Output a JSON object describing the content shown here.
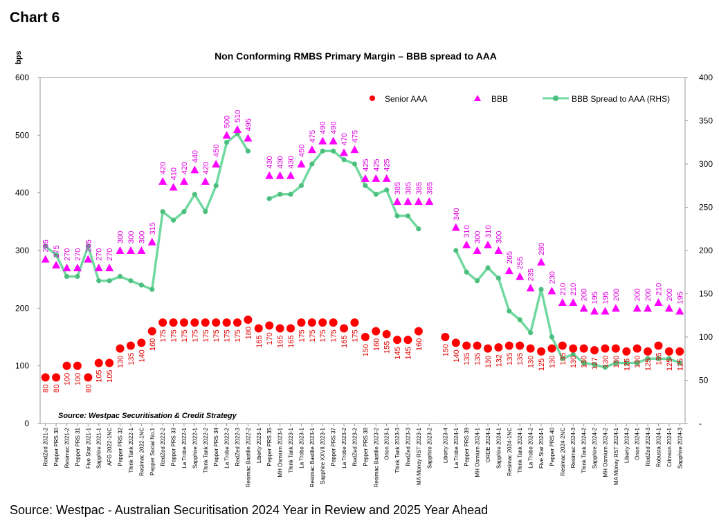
{
  "heading": "Chart 6",
  "footer": "Source: Westpac - Australian Securitisation 2024 Year in Review and 2025 Year Ahead",
  "colors": {
    "senior": "#ff0000",
    "bbb": "#ff00ff",
    "spread": "#70d9a0",
    "spread_marker": "#4cbf7e",
    "label_senior": "#e00000",
    "label_bbb": "#e000e0"
  },
  "chart_data": {
    "type": "line",
    "title": "Non Conforming RMBS Primary Margin – BBB spread to AAA",
    "ylabel": "bps",
    "ylim": [
      0,
      600
    ],
    "y_ticks": [
      "0",
      "100",
      "200",
      "300",
      "400",
      "500",
      "600"
    ],
    "y2lim": [
      0,
      400
    ],
    "y2_ticks": [
      "-",
      "50",
      "100",
      "150",
      "200",
      "250",
      "300",
      "350",
      "400"
    ],
    "grid": false,
    "legend_position": "top-right",
    "annotation": "Source: Westpac Securitisation & Credit Strategy",
    "categories": [
      "RedZed 2021-2",
      "Pepper PRS 30",
      "Resimac 2021-2",
      "Pepper PRS 31",
      "Five Star 2021-1",
      "Sapphire 2021-1",
      "AFG 2022-1NC",
      "Pepper PRS 32",
      "Think Tank 2022-1",
      "Resimac 2022-1NC",
      "Pepper Social No.1",
      "RedZed 2022-2",
      "Pepper PRS 33",
      "La Trobe 2022-1",
      "Sapphire 2022-1",
      "Think Tank 2022-2",
      "Pepper PRS 34",
      "La Trobe 2022-2",
      "RedZed 2022-3",
      "Resimac Bastille 2022-2",
      "Liberty 2023-1",
      "Pepper PRS 35",
      "MH Osmium 2023-1",
      "Think Tank 2023-1",
      "La Trobe 2023-1",
      "Resimac Bastille 2023-1",
      "Sapphire XXVII 2023-1",
      "Pepper PRS 37",
      "La Trobe 2023-2",
      "RedZed 2023-2",
      "Pepper PRS 38",
      "Resimac Bastille 2023-2",
      "Orion 2023-1",
      "Think Tank 2023-3",
      "RedZed 2023-3",
      "MA Money RST 2023-1",
      "Sapphire 2023-2",
      "Liberty 2023-4",
      "La Trobe 2024-1",
      "Pepper PRS 39",
      "MH Osmium 2024-1",
      "ORDE 2024-1",
      "Sapphire 2024-1",
      "Resimac 2024-1NC",
      "Think Tank 2024-1",
      "La Trobe 2024-2",
      "Five Star 2024-1",
      "Pepper PRS 40",
      "Resimac 2024-2NC",
      "Resimac 2024-3",
      "Think Tank 2024-2",
      "Sapphire 2024-2",
      "MH Osmium 2024-2",
      "MA Money RST 2024-1",
      "Liberty 2024-2",
      "Orion 2024-1",
      "RedZed 2024-3",
      "Robusta 2024-1",
      "Crimson 2024-1",
      "Sapphire 2024-3"
    ],
    "category_positions": [
      0,
      1,
      2,
      3,
      4,
      5,
      6,
      7,
      8,
      9,
      10,
      11,
      12,
      13,
      14,
      15,
      16,
      17,
      18,
      19,
      20,
      21,
      22,
      23,
      24,
      25,
      26,
      27,
      28,
      29,
      30,
      31,
      32,
      33,
      34,
      35,
      36,
      37.5,
      38.5,
      39.5,
      40.5,
      41.5,
      42.5,
      43.5,
      44.5,
      45.5,
      46.5,
      47.5,
      48.5,
      49.5,
      50.5,
      51.5,
      52.5,
      53.5,
      54.5,
      55.5,
      56.5,
      57.5,
      58.5,
      59.5
    ],
    "series": [
      {
        "name": "Senior AAA",
        "axis": "left",
        "marker": "circle",
        "values": [
          80,
          80,
          100,
          100,
          80,
          105,
          105,
          130,
          135,
          140,
          160,
          175,
          175,
          175,
          175,
          175,
          175,
          175,
          175,
          180,
          165,
          170,
          165,
          165,
          175,
          175,
          175,
          175,
          165,
          175,
          150,
          160,
          155,
          145,
          145,
          160,
          null,
          150,
          140,
          135,
          135,
          130,
          132,
          135,
          135,
          130,
          125,
          130,
          135,
          130,
          130,
          127,
          130,
          130,
          125,
          130,
          125,
          135,
          125,
          125
        ],
        "labels": [
          "80",
          "80",
          "100",
          "100",
          "80",
          "105",
          "105",
          "130",
          "135",
          "140",
          "160",
          "175",
          "175",
          "175",
          "175",
          "175",
          "175",
          "175",
          "175",
          "180",
          "165",
          "170",
          "165",
          "165",
          "175",
          "175",
          "175",
          "175",
          "165",
          "175",
          "150",
          "160",
          "155",
          "145",
          "145",
          "160",
          "",
          "150",
          "140",
          "135",
          "135",
          "130",
          "132",
          "135",
          "135",
          "130",
          "125",
          "130",
          "135",
          "130",
          "130",
          "127",
          "130",
          "130",
          "125",
          "130",
          "125",
          "135",
          "125",
          "125"
        ]
      },
      {
        "name": "BBB",
        "axis": "left",
        "marker": "triangle",
        "values": [
          285,
          275,
          270,
          270,
          285,
          270,
          270,
          300,
          300,
          300,
          315,
          420,
          410,
          420,
          440,
          420,
          450,
          500,
          510,
          495,
          null,
          430,
          430,
          430,
          450,
          475,
          490,
          490,
          470,
          475,
          425,
          425,
          425,
          385,
          385,
          385,
          385,
          null,
          340,
          310,
          300,
          310,
          300,
          265,
          255,
          235,
          280,
          230,
          210,
          210,
          200,
          195,
          195,
          200,
          null,
          200,
          200,
          210,
          200,
          195
        ],
        "labels": [
          "285",
          "275",
          "270",
          "270",
          "285",
          "270",
          "270",
          "300",
          "300",
          "300",
          "315",
          "420",
          "410",
          "420",
          "440",
          "420",
          "450",
          "500",
          "510",
          "495",
          "",
          "430",
          "430",
          "430",
          "450",
          "475",
          "490",
          "490",
          "470",
          "475",
          "425",
          "425",
          "425",
          "385",
          "385",
          "385",
          "385",
          "",
          "340",
          "310",
          "300",
          "310",
          "300",
          "265",
          "255",
          "235",
          "280",
          "230",
          "210",
          "210",
          "200",
          "195",
          "195",
          "200",
          "",
          "200",
          "200",
          "210",
          "200",
          "195"
        ]
      },
      {
        "name": "BBB Spread to AAA (RHS)",
        "axis": "right",
        "marker": "line-circle",
        "values": [
          205,
          195,
          170,
          170,
          205,
          165,
          165,
          170,
          165,
          160,
          155,
          245,
          235,
          245,
          265,
          245,
          275,
          325,
          335,
          315,
          null,
          260,
          265,
          265,
          275,
          300,
          315,
          315,
          305,
          300,
          275,
          265,
          270,
          240,
          240,
          225,
          null,
          null,
          200,
          175,
          165,
          180,
          168,
          130,
          120,
          105,
          155,
          100,
          75,
          80,
          70,
          68,
          65,
          70,
          70,
          70,
          75,
          75,
          75,
          70
        ]
      }
    ]
  }
}
